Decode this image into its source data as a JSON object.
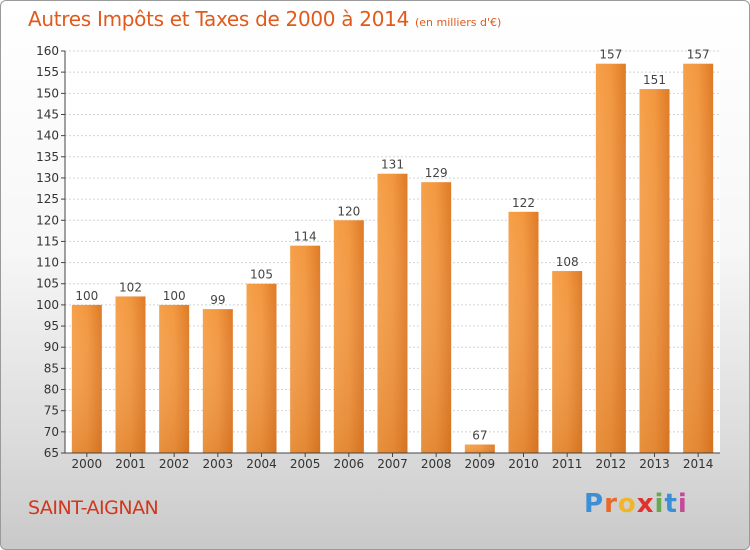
{
  "title": "Autres Impôts et Taxes de 2000 à 2014",
  "subtitle": "(en milliers d'€)",
  "commune": "SAINT-AIGNAN",
  "logo": {
    "letters": [
      "P",
      "r",
      "o",
      "x",
      "i",
      "t",
      "i"
    ],
    "colors": [
      "#3a8fd6",
      "#e8692a",
      "#f0b62b",
      "#e0312f",
      "#6aa84f",
      "#3a8fd6",
      "#c44a9a"
    ]
  },
  "colors": {
    "bar": "#f2973f",
    "bar_dark": "#d9731e",
    "title": "#e05a1c",
    "commune": "#d2361c"
  },
  "chart_data": {
    "type": "bar",
    "title": "Autres Impôts et Taxes de 2000 à 2014",
    "categories": [
      "2000",
      "2001",
      "2002",
      "2003",
      "2004",
      "2005",
      "2006",
      "2007",
      "2008",
      "2009",
      "2010",
      "2011",
      "2012",
      "2013",
      "2014"
    ],
    "values": [
      100,
      102,
      100,
      99,
      105,
      114,
      120,
      131,
      129,
      67,
      122,
      108,
      157,
      151,
      157
    ],
    "data_labels": [
      "100",
      "102",
      "100",
      "99",
      "105",
      "114",
      "120",
      "131",
      "129",
      "67",
      "122",
      "108",
      "157",
      "151",
      "157"
    ],
    "ylim": [
      65,
      160
    ],
    "yticks": [
      "65",
      "70",
      "75",
      "80",
      "85",
      "90",
      "95",
      "100",
      "105",
      "110",
      "115",
      "120",
      "125",
      "130",
      "135",
      "140",
      "145",
      "150",
      "155",
      "160"
    ],
    "grid": true
  }
}
